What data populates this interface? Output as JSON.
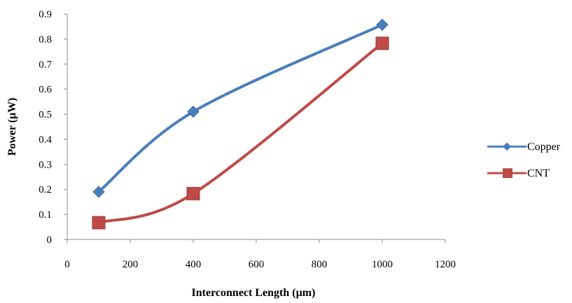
{
  "chart_data": {
    "type": "line",
    "title": "",
    "xlabel": "Interconnect Length (µm)",
    "ylabel": "Power  (µW)",
    "xlim": [
      0,
      1200
    ],
    "ylim": [
      0,
      0.9
    ],
    "x_ticks": [
      0,
      200,
      400,
      600,
      800,
      1000,
      1200
    ],
    "y_ticks": [
      0,
      0.1,
      0.2,
      0.3,
      0.4,
      0.5,
      0.6,
      0.7,
      0.8,
      0.9
    ],
    "x_tick_labels": [
      "0",
      "200",
      "400",
      "600",
      "800",
      "1000",
      "1200"
    ],
    "y_tick_labels": [
      "0",
      "0.1",
      "0.2",
      "0.3",
      "0.4",
      "0.5",
      "0.6",
      "0.7",
      "0.8",
      "0.9"
    ],
    "grid": false,
    "smooth": true,
    "legend_position": "right",
    "series": [
      {
        "name": "Copper",
        "color": "#4A7EBB",
        "marker": "diamond",
        "x": [
          100,
          400,
          1000
        ],
        "y": [
          0.19,
          0.51,
          0.857
        ]
      },
      {
        "name": "CNT",
        "color": "#BE4B48",
        "marker": "square",
        "x": [
          100,
          400,
          1000
        ],
        "y": [
          0.067,
          0.183,
          0.783
        ]
      }
    ]
  }
}
